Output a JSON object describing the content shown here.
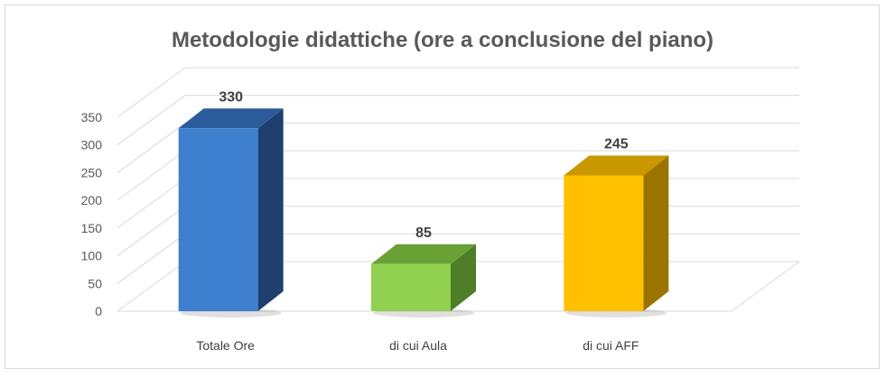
{
  "chart_data": {
    "type": "bar",
    "title": "Metodologie didattiche (ore a conclusione del piano)",
    "categories": [
      "Totale Ore",
      "di cui Aula",
      "di cui AFF"
    ],
    "values": [
      330,
      85,
      245
    ],
    "data_labels": [
      "330",
      "85",
      "245"
    ],
    "ylim": [
      0,
      350
    ],
    "yticks": [
      0,
      50,
      100,
      150,
      200,
      250,
      300,
      350
    ],
    "grid": true,
    "legend": "none",
    "style": "3d-column",
    "colors": {
      "Totale Ore": {
        "front": "#3f7fd0",
        "side": "#1f3f6e",
        "top": "#2c5b9b"
      },
      "di cui Aula": {
        "front": "#92d050",
        "side": "#4f7e28",
        "top": "#6aa137"
      },
      "di cui AFF": {
        "front": "#ffc000",
        "side": "#9b7400",
        "top": "#c99700"
      }
    }
  }
}
